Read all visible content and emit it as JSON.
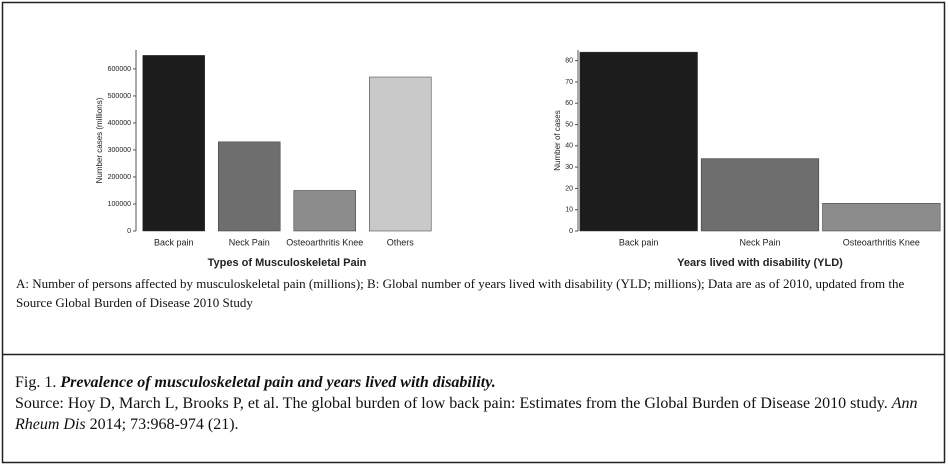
{
  "figure": {
    "charts": [
      {
        "type": "bar",
        "ylabel": "Number cases (millions)",
        "xlabel": "Types of Musculoskeletal Pain",
        "categories": [
          "Back pain",
          "Neck Pain",
          "Osteoarthritis Knee",
          "Others"
        ],
        "values": [
          650000,
          330000,
          150000,
          570000
        ],
        "colors": [
          "#1c1c1c",
          "#6e6e6e",
          "#8c8c8c",
          "#c9c9c9"
        ],
        "ylim": [
          0,
          670000
        ],
        "yticks": [
          0,
          100000,
          200000,
          300000,
          400000,
          500000,
          600000
        ]
      },
      {
        "type": "bar",
        "ylabel": "Number of cases",
        "xlabel": "Years lived with disability (YLD)",
        "categories": [
          "Back pain",
          "Neck Pain",
          "Osteoarthritis Knee"
        ],
        "values": [
          84,
          34,
          13
        ],
        "colors": [
          "#1c1c1c",
          "#6e6e6e",
          "#8c8c8c"
        ],
        "ylim": [
          0,
          85
        ],
        "yticks": [
          0,
          10,
          20,
          30,
          40,
          50,
          60,
          70,
          80
        ]
      }
    ],
    "note": "A: Number of persons affected by musculoskeletal pain (millions); B: Global number of years lived with disability (YLD; millions); Data are as of 2010, updated from the Source Global Burden of Disease 2010 Study",
    "caption": {
      "label": "Fig. 1.",
      "title": "Prevalence of musculoskeletal pain and years lived with disability.",
      "source": "Source: Hoy D, March L, Brooks P, et al. The global burden of low back pain: Estimates from the Global Burden of Disease 2010 study.",
      "journal": "Ann Rheum Dis",
      "citation": "2014; 73:968-974 (21)."
    }
  }
}
